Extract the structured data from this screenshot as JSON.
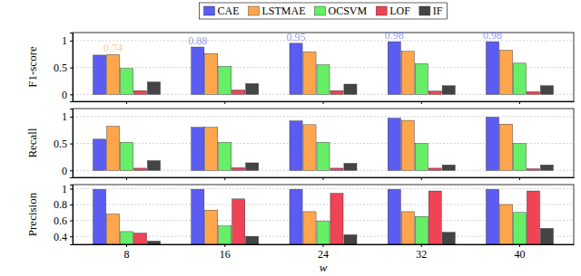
{
  "chart_data": [
    {
      "type": "bar",
      "y_label": "F1-score",
      "categories": [
        "8",
        "16",
        "24",
        "32",
        "40"
      ],
      "ylim": [
        -0.13,
        1.15
      ],
      "yticks": [
        0,
        0.5,
        1
      ],
      "grid": true,
      "legend": "top",
      "tick_labels": "y",
      "series": [
        {
          "name": "CAE",
          "color": "#5c5cf2",
          "values": [
            0.73,
            0.88,
            0.95,
            0.98,
            0.98
          ]
        },
        {
          "name": "LSTMAE",
          "color": "#ffa64d",
          "values": [
            0.74,
            0.76,
            0.79,
            0.8,
            0.82
          ]
        },
        {
          "name": "OCSVM",
          "color": "#66ee66",
          "values": [
            0.48,
            0.52,
            0.55,
            0.57,
            0.58
          ]
        },
        {
          "name": "LOF",
          "color": "#ee4455",
          "values": [
            0.07,
            0.08,
            0.07,
            0.06,
            0.05
          ]
        },
        {
          "name": "IF",
          "color": "#444444",
          "values": [
            0.23,
            0.2,
            0.19,
            0.16,
            0.16
          ]
        }
      ],
      "annotations": [
        {
          "text": "0.74",
          "x": "8",
          "y": 0.74,
          "series": "LSTMAE"
        },
        {
          "text": "0.88",
          "x": "16",
          "y": 0.88,
          "series": "CAE"
        },
        {
          "text": "0.95",
          "x": "24",
          "y": 0.95,
          "series": "CAE"
        },
        {
          "text": "0.98",
          "x": "32",
          "y": 0.98,
          "series": "CAE"
        },
        {
          "text": "0.98",
          "x": "40",
          "y": 0.98,
          "series": "CAE"
        }
      ]
    },
    {
      "type": "bar",
      "y_label": "Recall",
      "categories": [
        "8",
        "16",
        "24",
        "32",
        "40"
      ],
      "ylim": [
        -0.13,
        1.15
      ],
      "yticks": [
        0,
        0.5,
        1
      ],
      "grid": true,
      "tick_labels": "y",
      "series": [
        {
          "name": "CAE",
          "color": "#5c5cf2",
          "values": [
            0.58,
            0.8,
            0.92,
            0.97,
            0.99
          ]
        },
        {
          "name": "LSTMAE",
          "color": "#ffa64d",
          "values": [
            0.82,
            0.8,
            0.85,
            0.93,
            0.86
          ]
        },
        {
          "name": "OCSVM",
          "color": "#66ee66",
          "values": [
            0.52,
            0.52,
            0.52,
            0.5,
            0.5
          ]
        },
        {
          "name": "LOF",
          "color": "#ee4455",
          "values": [
            0.04,
            0.05,
            0.04,
            0.04,
            0.03
          ]
        },
        {
          "name": "IF",
          "color": "#444444",
          "values": [
            0.18,
            0.14,
            0.13,
            0.1,
            0.1
          ]
        }
      ]
    },
    {
      "type": "bar",
      "y_label": "Precision",
      "x_label": "w",
      "categories": [
        "8",
        "16",
        "24",
        "32",
        "40"
      ],
      "ylim": [
        0.3,
        1.05
      ],
      "yticks": [
        0.4,
        0.6,
        0.8,
        1
      ],
      "grid": true,
      "series": [
        {
          "name": "CAE",
          "color": "#5c5cf2",
          "values": [
            0.99,
            0.99,
            0.99,
            0.99,
            0.99
          ]
        },
        {
          "name": "LSTMAE",
          "color": "#ffa64d",
          "values": [
            0.68,
            0.73,
            0.71,
            0.71,
            0.8
          ]
        },
        {
          "name": "OCSVM",
          "color": "#66ee66",
          "values": [
            0.46,
            0.53,
            0.59,
            0.65,
            0.7
          ]
        },
        {
          "name": "LOF",
          "color": "#ee4455",
          "values": [
            0.44,
            0.87,
            0.94,
            0.97,
            0.97
          ]
        },
        {
          "name": "IF",
          "color": "#444444",
          "values": [
            0.34,
            0.4,
            0.42,
            0.45,
            0.5
          ]
        }
      ]
    }
  ]
}
